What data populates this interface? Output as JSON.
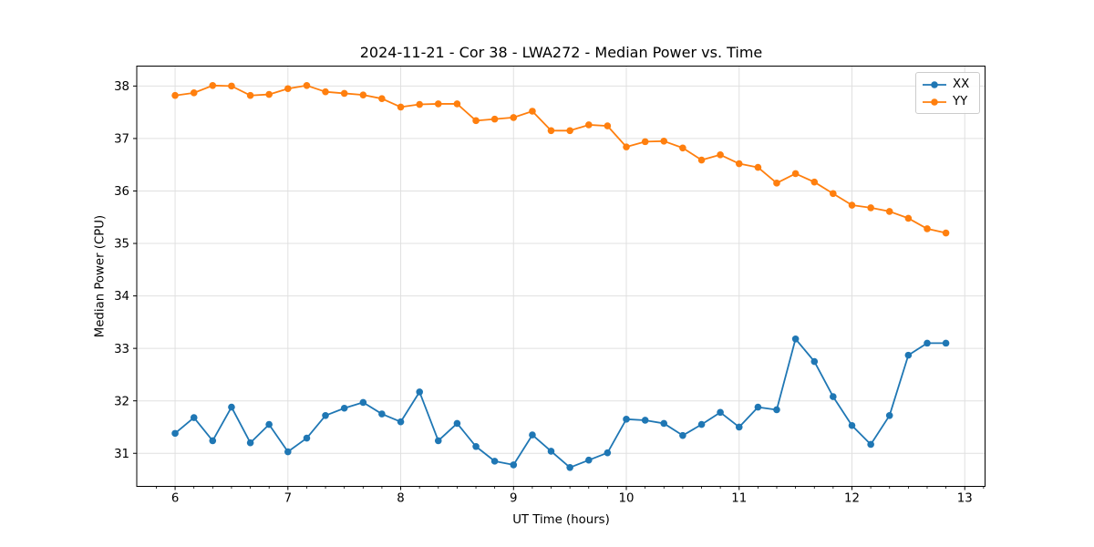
{
  "chart_data": {
    "type": "line",
    "title": "2024-11-21 - Cor 38 - LWA272 - Median Power vs. Time",
    "xlabel": "UT Time (hours)",
    "ylabel": "Median Power (CPU)",
    "xlim": [
      5.66,
      13.18
    ],
    "ylim": [
      30.37,
      38.38
    ],
    "xticks": [
      6,
      7,
      8,
      9,
      10,
      11,
      12,
      13
    ],
    "yticks": [
      31,
      32,
      33,
      34,
      35,
      36,
      37,
      38
    ],
    "x_minor_tick_step": 0.1667,
    "grid": true,
    "legend_position": "upper right",
    "marker": "circle",
    "x": [
      6.0,
      6.167,
      6.333,
      6.5,
      6.667,
      6.833,
      7.0,
      7.167,
      7.333,
      7.5,
      7.667,
      7.833,
      8.0,
      8.167,
      8.333,
      8.5,
      8.667,
      8.833,
      9.0,
      9.167,
      9.333,
      9.5,
      9.667,
      9.833,
      10.0,
      10.167,
      10.333,
      10.5,
      10.667,
      10.833,
      11.0,
      11.167,
      11.333,
      11.5,
      11.667,
      11.833,
      12.0,
      12.167,
      12.333,
      12.5,
      12.667,
      12.833
    ],
    "series": [
      {
        "name": "XX",
        "color": "#1f77b4",
        "values": [
          31.38,
          31.68,
          31.24,
          31.88,
          31.2,
          31.55,
          31.03,
          31.29,
          31.72,
          31.86,
          31.97,
          31.75,
          31.6,
          32.17,
          31.24,
          31.57,
          31.13,
          30.85,
          30.78,
          31.35,
          31.04,
          30.73,
          30.87,
          31.01,
          31.65,
          31.63,
          31.57,
          31.34,
          31.55,
          31.78,
          31.5,
          31.88,
          31.83,
          33.18,
          32.75,
          32.08,
          31.53,
          31.17,
          31.72,
          32.87,
          33.1,
          33.1
        ]
      },
      {
        "name": "YY",
        "color": "#ff7f0e",
        "values": [
          37.82,
          37.87,
          38.01,
          38.0,
          37.82,
          37.84,
          37.95,
          38.01,
          37.89,
          37.86,
          37.83,
          37.76,
          37.6,
          37.65,
          37.66,
          37.66,
          37.34,
          37.37,
          37.4,
          37.52,
          37.15,
          37.15,
          37.26,
          37.24,
          36.84,
          36.94,
          36.95,
          36.82,
          36.59,
          36.69,
          36.52,
          36.45,
          36.15,
          36.33,
          36.17,
          35.95,
          35.73,
          35.68,
          35.61,
          35.48,
          35.28,
          35.2
        ]
      }
    ]
  },
  "colors": {
    "grid": "#e0e0e0",
    "spine": "#000000",
    "tick": "#000000",
    "text": "#000000",
    "background": "#ffffff"
  }
}
